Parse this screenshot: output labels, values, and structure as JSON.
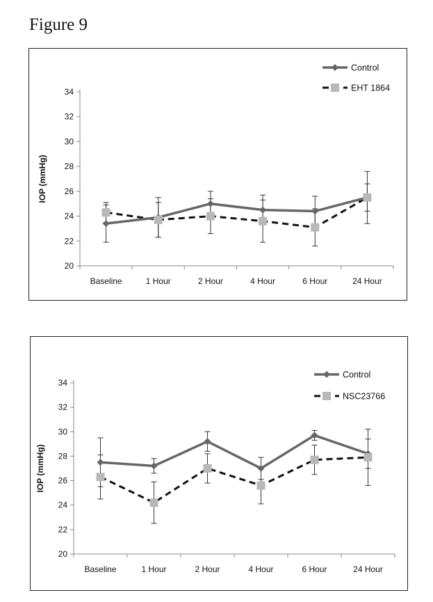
{
  "figure_title": "Figure 9",
  "chart_data": [
    {
      "type": "line",
      "categories": [
        "Baseline",
        "1 Hour",
        "2 Hour",
        "4 Hour",
        "6 Hour",
        "24 Hour"
      ],
      "ylabel": "IOP (mmHg)",
      "xlabel": "",
      "ylim": [
        20,
        34
      ],
      "yticks": [
        20,
        22,
        24,
        26,
        28,
        30,
        32,
        34
      ],
      "grid": false,
      "legend_position": "top-right",
      "series": [
        {
          "name": "Control",
          "values": [
            23.4,
            23.9,
            25.0,
            24.5,
            24.4,
            25.5
          ],
          "error": [
            1.5,
            1.6,
            1.0,
            1.2,
            1.2,
            1.1
          ],
          "line_style": "solid",
          "marker": "diamond",
          "color": "#666666"
        },
        {
          "name": "EHT 1864",
          "values": [
            24.3,
            23.7,
            24.0,
            23.6,
            23.1,
            25.5
          ],
          "error": [
            0.8,
            1.4,
            1.4,
            1.7,
            1.5,
            2.1
          ],
          "line_style": "dashed",
          "marker": "square",
          "color": "#111111"
        }
      ]
    },
    {
      "type": "line",
      "categories": [
        "Baseline",
        "1 Hour",
        "2 Hour",
        "4 Hour",
        "6 Hour",
        "24 Hour"
      ],
      "ylabel": "IOP (mmHg)",
      "xlabel": "",
      "ylim": [
        20,
        34
      ],
      "yticks": [
        20,
        22,
        24,
        26,
        28,
        30,
        32,
        34
      ],
      "grid": false,
      "legend_position": "top-right",
      "series": [
        {
          "name": "Control",
          "values": [
            27.5,
            27.2,
            29.2,
            27.0,
            29.7,
            28.2
          ],
          "error": [
            2.0,
            0.6,
            0.8,
            0.9,
            0.4,
            1.2
          ],
          "line_style": "solid",
          "marker": "diamond",
          "color": "#666666"
        },
        {
          "name": "NSC23766",
          "values": [
            26.3,
            24.2,
            27.0,
            25.6,
            27.7,
            27.9
          ],
          "error": [
            1.8,
            1.7,
            1.2,
            1.5,
            1.2,
            2.3
          ],
          "line_style": "dashed",
          "marker": "square",
          "color": "#111111"
        }
      ]
    }
  ]
}
